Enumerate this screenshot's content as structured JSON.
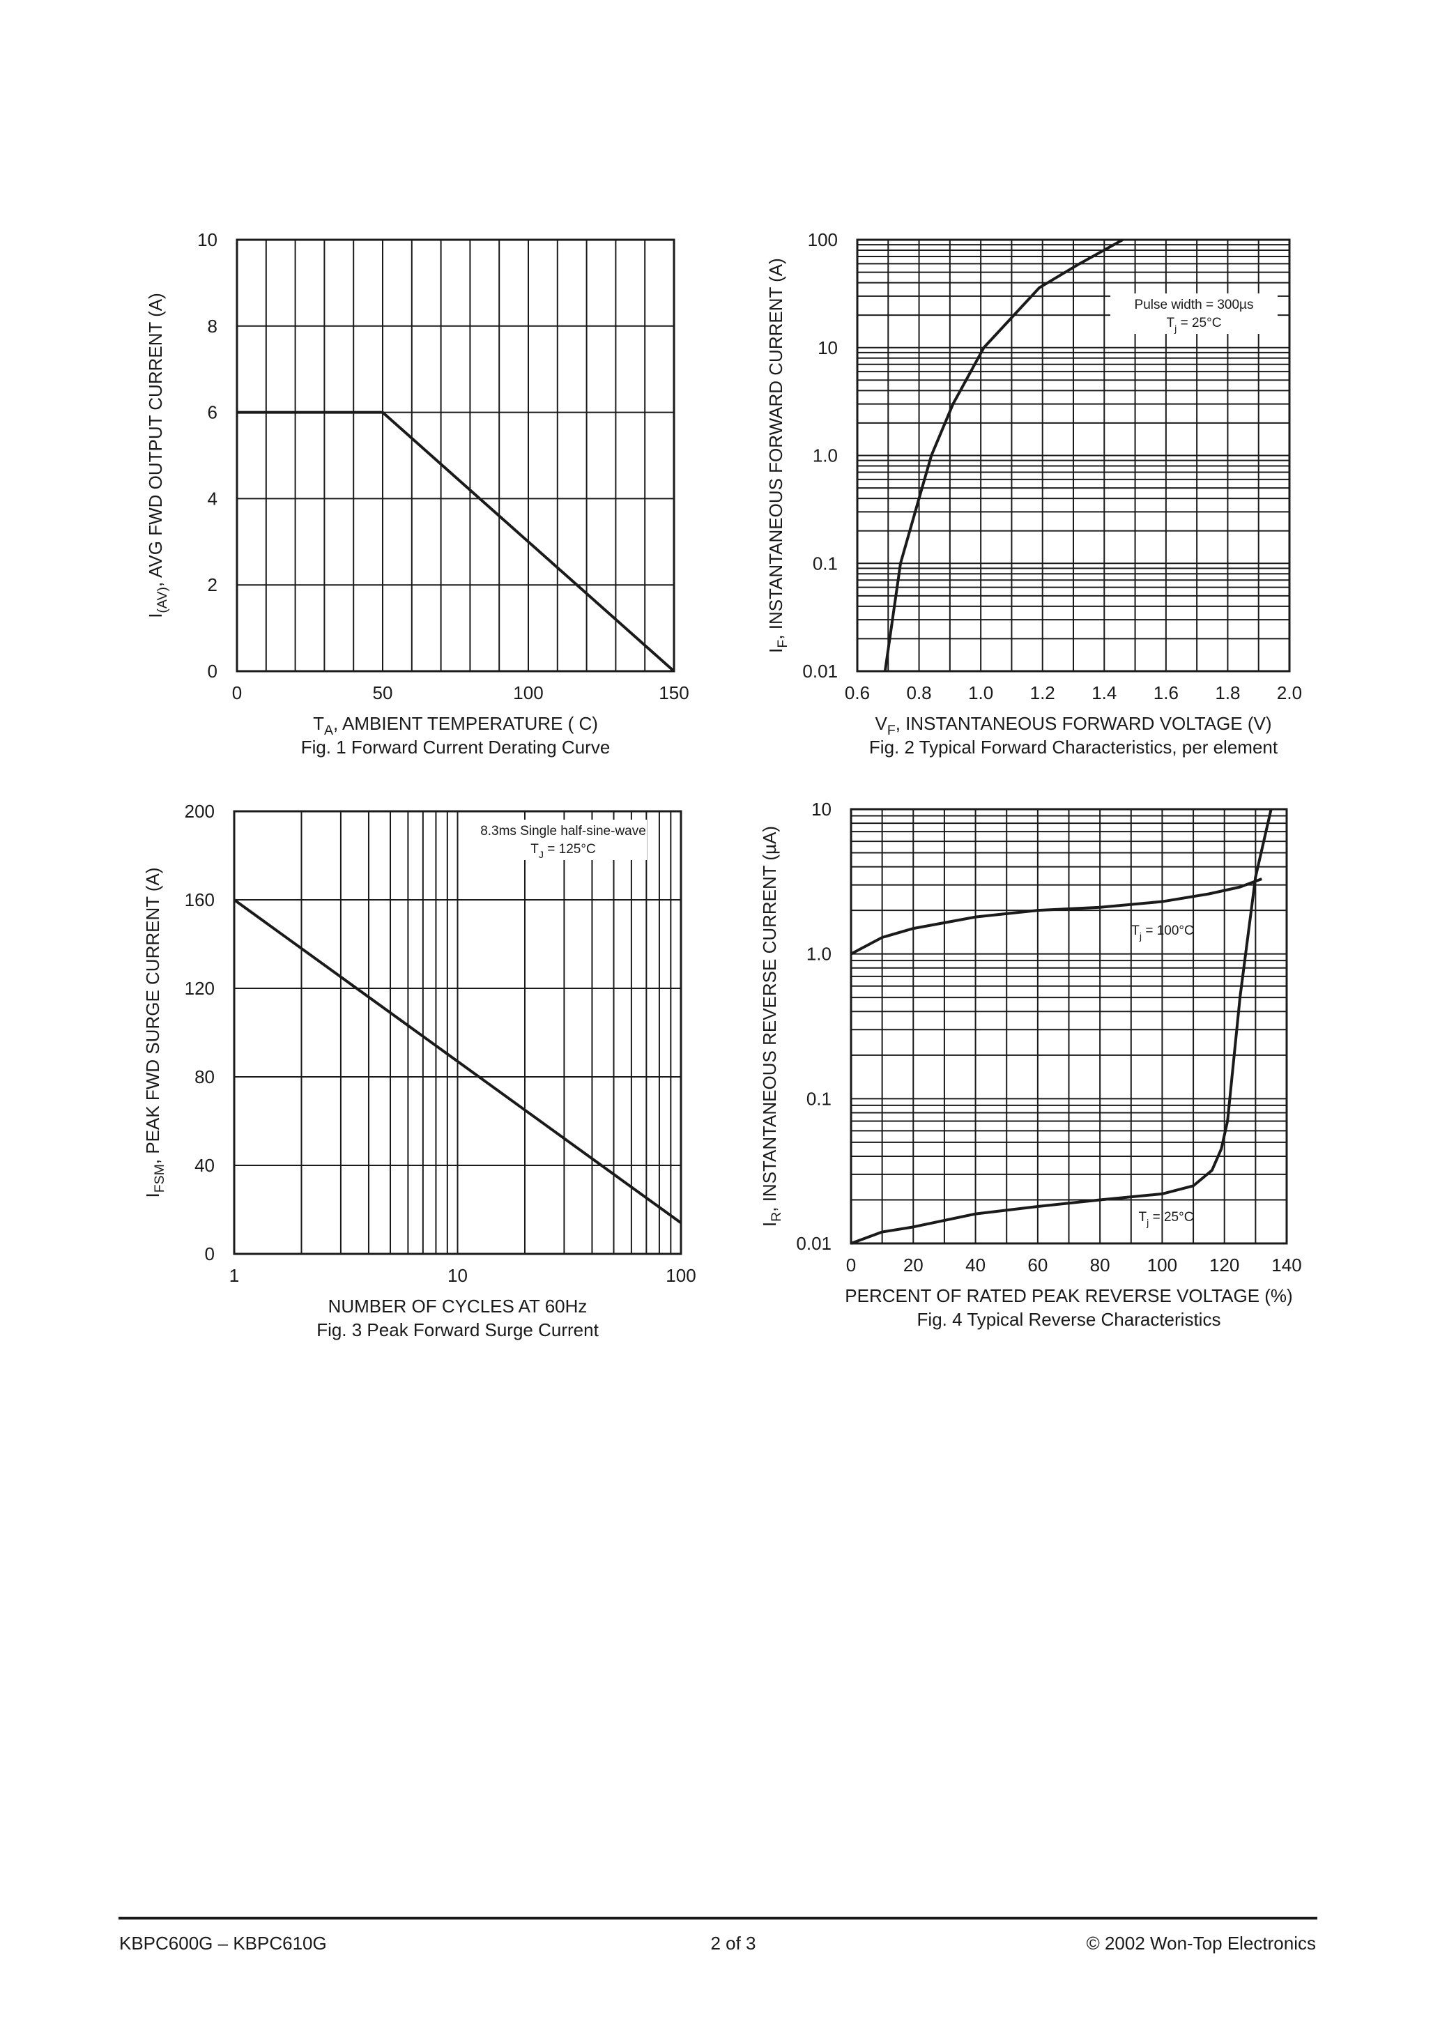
{
  "chart_data": [
    {
      "type": "line",
      "ylabel": {
        "text": "I",
        "sub": "(AV)",
        "rest": ", AVG FWD OUTPUT CURRENT (A)"
      },
      "xlabel": {
        "text": "T",
        "sub": "A",
        "rest": ", AMBIENT TEMPERATURE   ( C)"
      },
      "caption": "Fig. 1  Forward Current Derating Curve",
      "xlim": [
        0,
        150
      ],
      "xticks": [
        0,
        50,
        100,
        150
      ],
      "ylim": [
        0,
        10
      ],
      "yticks": [
        0,
        2,
        4,
        6,
        8,
        10
      ],
      "x_minor_grid": [
        10,
        20,
        30,
        40,
        60,
        70,
        80,
        90,
        110,
        120,
        130,
        140
      ],
      "y_minor_grid": [],
      "grid": true,
      "series": [
        {
          "color": "#1a1a1a",
          "x": [
            0,
            50,
            150
          ],
          "values": [
            6,
            6,
            0
          ]
        }
      ]
    },
    {
      "type": "line",
      "yscale": "log",
      "ylabel": {
        "text": "I",
        "sub": "F",
        "rest": ", INSTANTANEOUS FORWARD CURRENT (A)"
      },
      "xlabel": {
        "text": "V",
        "sub": "F",
        "rest": ", INSTANTANEOUS FORWARD VOLTAGE (V)"
      },
      "caption": "Fig. 2  Typical Forward Characteristics, per element",
      "annotations": [
        {
          "text": "Pulse width = 300µs"
        },
        {
          "text": "T",
          "sub": "j",
          "rest": " = 25°C"
        }
      ],
      "xlim": [
        0.6,
        2.0
      ],
      "xticks": [
        0.6,
        0.8,
        {
          "value": 1.0,
          "label": "1.0"
        },
        1.2,
        1.4,
        1.6,
        1.8,
        {
          "value": 2.0,
          "label": "2.0"
        }
      ],
      "ylim": [
        0.01,
        100
      ],
      "yticks": [
        0.01,
        0.1,
        {
          "value": 1,
          "label": "1.0"
        },
        10,
        100
      ],
      "x_minor_grid": [
        0.7,
        0.9,
        1.1,
        1.3,
        1.5,
        1.7,
        1.9
      ],
      "y_minor_grid": [
        0.02,
        0.03,
        0.04,
        0.05,
        0.06,
        0.07,
        0.08,
        0.09,
        0.2,
        0.3,
        0.4,
        0.5,
        0.6,
        0.7,
        0.8,
        0.9,
        2,
        3,
        4,
        5,
        6,
        7,
        8,
        9,
        20,
        30,
        40,
        50,
        60,
        70,
        80,
        90
      ],
      "grid": true,
      "series": [
        {
          "color": "#1a1a1a",
          "x": [
            0.69,
            0.74,
            0.8,
            0.84,
            0.91,
            1.01,
            1.19,
            1.32,
            1.46
          ],
          "values": [
            0.01,
            0.1,
            0.4,
            1,
            3,
            10,
            36,
            60,
            100
          ]
        }
      ]
    },
    {
      "type": "line",
      "xscale": "log",
      "ylabel": {
        "text": "I",
        "sub": "FSM",
        "rest": ", PEAK FWD SURGE CURRENT (A)"
      },
      "xlabel": {
        "text": "NUMBER OF CYCLES AT 60Hz"
      },
      "caption": "Fig. 3  Peak Forward Surge Current",
      "annotations": [
        {
          "text": "8.3ms Single half-sine-wave"
        },
        {
          "text": "T",
          "sub": "J",
          "rest": " = 125°C"
        }
      ],
      "xlim": [
        1,
        100
      ],
      "xticks": [
        1,
        10,
        100
      ],
      "ylim": [
        0,
        200
      ],
      "yticks": [
        0,
        40,
        80,
        120,
        160,
        200
      ],
      "x_minor_grid": [
        2,
        3,
        4,
        5,
        6,
        7,
        8,
        9,
        20,
        30,
        40,
        50,
        60,
        70,
        80,
        90
      ],
      "y_minor_grid": [],
      "grid": true,
      "series": [
        {
          "color": "#1a1a1a",
          "x": [
            1,
            100
          ],
          "values": [
            160,
            14
          ]
        }
      ]
    },
    {
      "type": "line",
      "yscale": "log",
      "ylabel": {
        "text": "I",
        "sub": "R",
        "rest": ", INSTANTANEOUS REVERSE CURRENT (µA)"
      },
      "xlabel": {
        "text": "PERCENT OF RATED PEAK REVERSE VOLTAGE (%)"
      },
      "caption": "Fig. 4  Typical Reverse Characteristics",
      "xlim": [
        0,
        140
      ],
      "xticks": [
        0,
        20,
        40,
        60,
        80,
        100,
        120,
        140
      ],
      "ylim": [
        0.01,
        10
      ],
      "yticks": [
        0.01,
        0.1,
        {
          "value": 1,
          "label": "1.0"
        },
        10
      ],
      "x_minor_grid": [
        10,
        30,
        50,
        70,
        90,
        110,
        130
      ],
      "y_minor_grid": [
        0.02,
        0.03,
        0.04,
        0.05,
        0.06,
        0.07,
        0.08,
        0.09,
        0.2,
        0.3,
        0.4,
        0.5,
        0.6,
        0.7,
        0.8,
        0.9,
        2,
        3,
        4,
        5,
        6,
        7,
        8,
        9
      ],
      "grid": true,
      "series": [
        {
          "name": {
            "text": "T",
            "sub": "j",
            "rest": " = 100°C"
          },
          "color": "#1a1a1a",
          "x": [
            0,
            10,
            20,
            40,
            60,
            80,
            100,
            115,
            125,
            132
          ],
          "values": [
            1.0,
            1.3,
            1.5,
            1.8,
            2.0,
            2.1,
            2.3,
            2.6,
            2.9,
            3.3
          ]
        },
        {
          "name": {
            "text": "T",
            "sub": "j",
            "rest": " = 25°C"
          },
          "color": "#1a1a1a",
          "x": [
            0,
            10,
            20,
            40,
            60,
            80,
            100,
            110,
            116,
            119,
            121,
            125,
            130,
            135
          ],
          "values": [
            0.01,
            0.012,
            0.013,
            0.016,
            0.018,
            0.02,
            0.022,
            0.025,
            0.032,
            0.045,
            0.07,
            0.5,
            3.4,
            10
          ]
        }
      ]
    }
  ],
  "footer": {
    "left": "KBPC600G – KBPC610G",
    "center": "2 of 3",
    "right": "© 2002 Won-Top Electronics"
  }
}
